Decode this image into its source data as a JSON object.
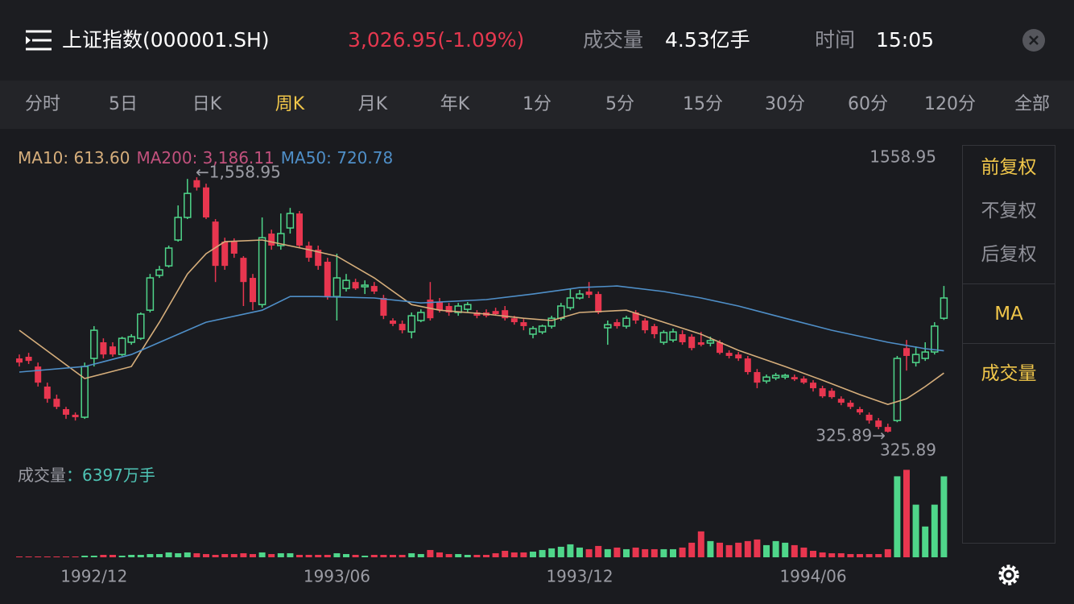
{
  "header": {
    "title": "上证指数(000001.SH)",
    "price": "3,026.95(-1.09%)",
    "volume_label": "成交量",
    "volume": "4.53亿手",
    "time_label": "时间",
    "time": "15:05"
  },
  "tabs": {
    "items": [
      "分时",
      "5日",
      "日K",
      "周K",
      "月K",
      "年K",
      "1分",
      "5分",
      "15分",
      "30分",
      "60分",
      "120分",
      "全部"
    ],
    "active_index": 3
  },
  "side_panel": {
    "items": [
      "前复权",
      "不复权",
      "后复权",
      "MA",
      "成交量"
    ],
    "highlighted": [
      0,
      3,
      4
    ],
    "separators_after": [
      2,
      3
    ]
  },
  "chart_data": {
    "type": "candlestick",
    "legend": [
      "MA10: 613.60",
      "MA200: 3,186.11",
      "MA50: 720.78"
    ],
    "legend_colors": [
      "#d6ae7b",
      "#c2517d",
      "#4f8fc8"
    ],
    "high_label": "1558.95",
    "high_arrow_label": "←1,558.95",
    "low_arrow_label": "325.89→",
    "low_label": "325.89",
    "volume_label": "成交量",
    "volume_value": "：6397万手",
    "up_color": "#4fd68a",
    "down_color": "#e8364f",
    "ylim": [
      198,
      1715
    ],
    "volume_ylim": [
      0,
      7000
    ],
    "categories": [
      null,
      null,
      null,
      null,
      null,
      null,
      null,
      null,
      "1992/12",
      null,
      null,
      null,
      null,
      null,
      null,
      null,
      null,
      null,
      null,
      null,
      null,
      null,
      null,
      null,
      null,
      null,
      null,
      null,
      null,
      null,
      null,
      null,
      null,
      null,
      "1993/06",
      null,
      null,
      null,
      null,
      null,
      null,
      null,
      null,
      null,
      null,
      null,
      null,
      null,
      null,
      null,
      null,
      null,
      null,
      null,
      null,
      null,
      null,
      null,
      null,
      null,
      "1993/12",
      null,
      null,
      null,
      null,
      null,
      null,
      null,
      null,
      null,
      null,
      null,
      null,
      null,
      null,
      null,
      null,
      null,
      null,
      null,
      null,
      null,
      null,
      null,
      null,
      "1994/06",
      null,
      null,
      null,
      null,
      null,
      null,
      null,
      null,
      null,
      null,
      null,
      null,
      null,
      null
    ],
    "ohlc": [
      [
        684,
        703,
        645,
        664
      ],
      [
        692,
        711,
        657,
        672
      ],
      [
        645,
        664,
        548,
        567
      ],
      [
        548,
        567,
        470,
        489
      ],
      [
        489,
        509,
        439,
        450
      ],
      [
        439,
        450,
        392,
        412
      ],
      [
        412,
        423,
        384,
        400
      ],
      [
        400,
        664,
        392,
        645
      ],
      [
        684,
        840,
        645,
        820
      ],
      [
        762,
        781,
        684,
        703
      ],
      [
        742,
        762,
        692,
        703
      ],
      [
        703,
        789,
        696,
        781
      ],
      [
        762,
        801,
        750,
        789
      ],
      [
        781,
        906,
        773,
        898
      ],
      [
        917,
        1092,
        906,
        1073
      ],
      [
        1085,
        1131,
        1073,
        1112
      ],
      [
        1131,
        1229,
        1123,
        1217
      ],
      [
        1256,
        1423,
        1248,
        1365
      ],
      [
        1365,
        1551,
        1357,
        1481
      ],
      [
        1545,
        1558.95,
        1495,
        1510
      ],
      [
        1510,
        1528,
        1357,
        1365
      ],
      [
        1345,
        1357,
        1053,
        1131
      ],
      [
        1248,
        1267,
        1112,
        1131
      ],
      [
        1248,
        1264,
        1170,
        1190
      ],
      [
        1170,
        1178,
        937,
        1053
      ],
      [
        1073,
        1092,
        917,
        956
      ],
      [
        944,
        1365,
        929,
        1267
      ],
      [
        1287,
        1306,
        1209,
        1229
      ],
      [
        1229,
        1384,
        1209,
        1287
      ],
      [
        1314,
        1411,
        1287,
        1384
      ],
      [
        1384,
        1396,
        1217,
        1229
      ],
      [
        1229,
        1248,
        1151,
        1170
      ],
      [
        1209,
        1229,
        1112,
        1131
      ],
      [
        1151,
        1170,
        968,
        983
      ],
      [
        983,
        1190,
        867,
        1073
      ],
      [
        1022,
        1092,
        1007,
        1061
      ],
      [
        1053,
        1069,
        1015,
        1022
      ],
      [
        1030,
        1061,
        995,
        1038
      ],
      [
        1034,
        1053,
        995,
        1007
      ],
      [
        976,
        991,
        874,
        890
      ],
      [
        867,
        878,
        840,
        851
      ],
      [
        851,
        867,
        805,
        820
      ],
      [
        812,
        906,
        781,
        890
      ],
      [
        867,
        921,
        859,
        906
      ],
      [
        968,
        1053,
        867,
        878
      ],
      [
        956,
        976,
        906,
        917
      ],
      [
        937,
        952,
        890,
        906
      ],
      [
        906,
        952,
        890,
        937
      ],
      [
        921,
        956,
        906,
        944
      ],
      [
        906,
        917,
        878,
        890
      ],
      [
        906,
        921,
        882,
        890
      ],
      [
        913,
        929,
        890,
        898
      ],
      [
        917,
        937,
        867,
        878
      ],
      [
        878,
        890,
        847,
        859
      ],
      [
        859,
        874,
        820,
        840
      ],
      [
        801,
        840,
        781,
        828
      ],
      [
        812,
        847,
        801,
        840
      ],
      [
        840,
        890,
        828,
        878
      ],
      [
        878,
        952,
        867,
        937
      ],
      [
        929,
        1022,
        917,
        976
      ],
      [
        976,
        1015,
        968,
        995
      ],
      [
        1007,
        1053,
        976,
        991
      ],
      [
        995,
        1007,
        898,
        906
      ],
      [
        832,
        867,
        750,
        847
      ],
      [
        859,
        874,
        828,
        840
      ],
      [
        840,
        890,
        828,
        878
      ],
      [
        906,
        917,
        851,
        867
      ],
      [
        867,
        878,
        805,
        820
      ],
      [
        840,
        851,
        781,
        801
      ],
      [
        762,
        820,
        750,
        809
      ],
      [
        773,
        828,
        762,
        812
      ],
      [
        801,
        820,
        750,
        762
      ],
      [
        789,
        801,
        723,
        734
      ],
      [
        762,
        812,
        742,
        750
      ],
      [
        758,
        789,
        742,
        770
      ],
      [
        762,
        773,
        703,
        711
      ],
      [
        711,
        723,
        684,
        696
      ],
      [
        703,
        715,
        672,
        684
      ],
      [
        684,
        696,
        606,
        618
      ],
      [
        618,
        633,
        540,
        567
      ],
      [
        575,
        606,
        563,
        594
      ],
      [
        590,
        614,
        579,
        602
      ],
      [
        594,
        610,
        583,
        602
      ],
      [
        594,
        606,
        575,
        583
      ],
      [
        587,
        598,
        560,
        567
      ],
      [
        567,
        579,
        524,
        540
      ],
      [
        540,
        552,
        493,
        501
      ],
      [
        528,
        540,
        489,
        497
      ],
      [
        489,
        501,
        458,
        470
      ],
      [
        470,
        482,
        439,
        450
      ],
      [
        439,
        450,
        412,
        423
      ],
      [
        412,
        423,
        369,
        384
      ],
      [
        384,
        396,
        342,
        353
      ],
      [
        353,
        369,
        325.89,
        330
      ],
      [
        384,
        696,
        376,
        684
      ],
      [
        734,
        773,
        625,
        696
      ],
      [
        664,
        742,
        645,
        703
      ],
      [
        684,
        762,
        672,
        715
      ],
      [
        715,
        859,
        703,
        840
      ],
      [
        878,
        1034,
        870,
        976
      ]
    ],
    "volumes": [
      64,
      64,
      64,
      64,
      64,
      64,
      64,
      128,
      128,
      192,
      192,
      128,
      192,
      192,
      256,
      256,
      384,
      320,
      384,
      320,
      256,
      192,
      256,
      256,
      320,
      256,
      384,
      256,
      320,
      320,
      192,
      192,
      192,
      192,
      320,
      256,
      192,
      128,
      192,
      192,
      192,
      192,
      320,
      256,
      576,
      384,
      256,
      256,
      192,
      192,
      192,
      320,
      512,
      384,
      384,
      448,
      576,
      704,
      832,
      1024,
      768,
      640,
      896,
      640,
      768,
      640,
      768,
      640,
      640,
      640,
      640,
      768,
      1152,
      2048,
      1280,
      1152,
      960,
      1152,
      1280,
      1408,
      960,
      1280,
      1152,
      960,
      768,
      512,
      384,
      320,
      320,
      256,
      256,
      256,
      256,
      640,
      6400,
      6912,
      4160,
      2432,
      4160,
      6397
    ],
    "ma": [
      {
        "color": "#d6ae7b",
        "x": [
          0,
          7,
          12,
          15,
          18,
          20,
          22,
          26,
          31,
          34,
          38,
          42,
          45,
          50,
          54,
          57,
          60,
          65,
          69,
          73,
          77,
          82,
          86,
          90,
          93,
          95,
          97,
          99
        ],
        "values": [
          820,
          587,
          645,
          859,
          1092,
          1190,
          1248,
          1256,
          1209,
          1178,
          1073,
          944,
          917,
          898,
          878,
          867,
          906,
          917,
          859,
          801,
          723,
          645,
          579,
          509,
          462,
          489,
          548,
          613.6
        ]
      },
      {
        "color": "#4f8fc8",
        "x": [
          0,
          7,
          12,
          16,
          20,
          26,
          29,
          32,
          38,
          43,
          50,
          55,
          60,
          64,
          69,
          73,
          77,
          82,
          87,
          93,
          97,
          99
        ],
        "values": [
          618,
          645,
          703,
          781,
          859,
          917,
          983,
          983,
          976,
          952,
          968,
          995,
          1026,
          1034,
          1007,
          976,
          937,
          878,
          820,
          762,
          731,
          720.78
        ]
      }
    ]
  }
}
